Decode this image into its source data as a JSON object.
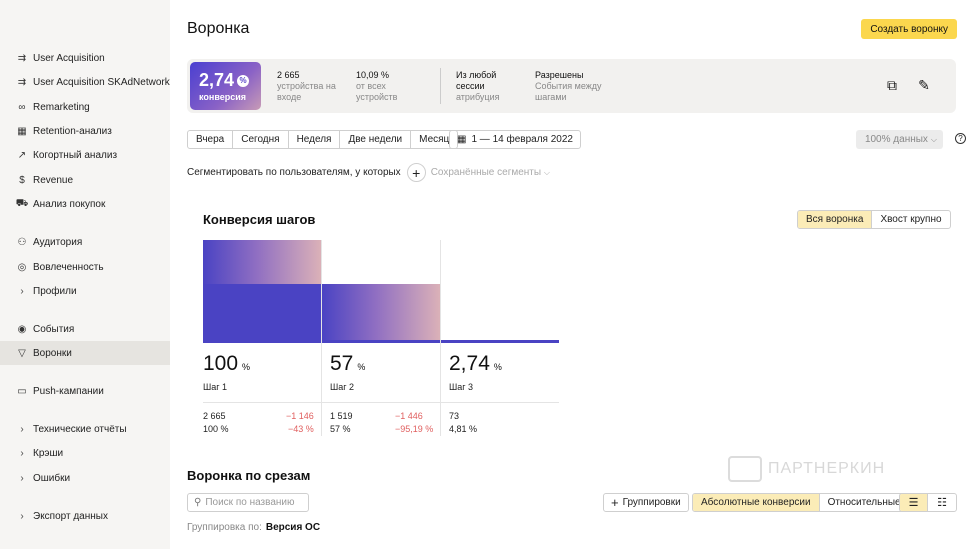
{
  "sidebar": {
    "items": [
      {
        "label": "User Acquisition",
        "icon": "arrows-icon"
      },
      {
        "label": "User Acquisition SKAdNetwork",
        "icon": "arrows-icon"
      },
      {
        "label": "Remarketing",
        "icon": "remarketing-icon"
      },
      {
        "label": "Retention-анализ",
        "icon": "grid-icon"
      },
      {
        "label": "Когортный анализ",
        "icon": "chart-icon"
      },
      {
        "label": "Revenue",
        "icon": "dollar-icon"
      },
      {
        "label": "Анализ покупок",
        "icon": "cart-icon"
      },
      {
        "label": "Аудитория",
        "icon": "audience-icon"
      },
      {
        "label": "Вовлеченность",
        "icon": "engagement-icon"
      },
      {
        "label": "Профили",
        "icon": "chevron-right-icon"
      },
      {
        "label": "События",
        "icon": "events-icon"
      },
      {
        "label": "Воронки",
        "icon": "funnel-icon"
      },
      {
        "label": "Push-кампании",
        "icon": "message-icon"
      },
      {
        "label": "Технические отчёты",
        "icon": "chevron-right-icon"
      },
      {
        "label": "Крэши",
        "icon": "chevron-right-icon"
      },
      {
        "label": "Ошибки",
        "icon": "chevron-right-icon"
      },
      {
        "label": "Экспорт данных",
        "icon": "chevron-right-icon"
      }
    ],
    "active": "Воронки"
  },
  "header": {
    "title": "Воронка",
    "create_button": "Создать воронку"
  },
  "summary": {
    "conversion_value": "2,74",
    "conversion_label": "конверсия",
    "devices_value": "2 665",
    "devices_sub": "устройства на входе",
    "share_value": "10,09 %",
    "share_sub": "от всех устройств",
    "session_value": "Из любой сессии",
    "session_sub": "атрибуция",
    "allowed_value": "Разрешены",
    "allowed_sub": "События между шагами"
  },
  "periods": [
    "Вчера",
    "Сегодня",
    "Неделя",
    "Две недели",
    "Месяц"
  ],
  "date_range": "1 — 14 февраля 2022",
  "data_percent": "100% данных",
  "segment": {
    "label": "Сегментировать по пользователям, у которых",
    "saved": "Сохранённые сегменты"
  },
  "funnel": {
    "title": "Конверсия шагов",
    "toggle": [
      "Вся воронка",
      "Хвост крупно"
    ],
    "toggle_active": "Вся воронка",
    "percent_sign": "%",
    "steps": [
      {
        "name": "Шаг 1",
        "percent": "100",
        "count": "2 665",
        "count_pct": "100 %",
        "lost": "−1 146",
        "lost_pct": "−43 %"
      },
      {
        "name": "Шаг 2",
        "percent": "57",
        "count": "1 519",
        "count_pct": "57 %",
        "lost": "−1 446",
        "lost_pct": "−95,19 %"
      },
      {
        "name": "Шаг 3",
        "percent": "2,74",
        "count": "73",
        "count_pct": "4,81 %",
        "lost": "",
        "lost_pct": ""
      }
    ]
  },
  "chart_data": {
    "type": "bar",
    "categories": [
      "Шаг 1",
      "Шаг 2",
      "Шаг 3"
    ],
    "values": [
      100,
      57,
      2.74
    ],
    "ylim": [
      0,
      100
    ]
  },
  "slices": {
    "title": "Воронка по срезам",
    "search_placeholder": "Поиск по названию",
    "group_button": "Группировки",
    "modes": [
      "Абсолютные конверсии",
      "Относительные"
    ],
    "mode_active": "Абсолютные конверсии",
    "group_by_label": "Группировка по:",
    "group_by_value": "Версия ОС"
  },
  "watermark": "ПАРТНЕРКИН",
  "colors": {
    "accent": "#fbd74e",
    "bar": "#4a43c3",
    "negative": "#e06060"
  }
}
